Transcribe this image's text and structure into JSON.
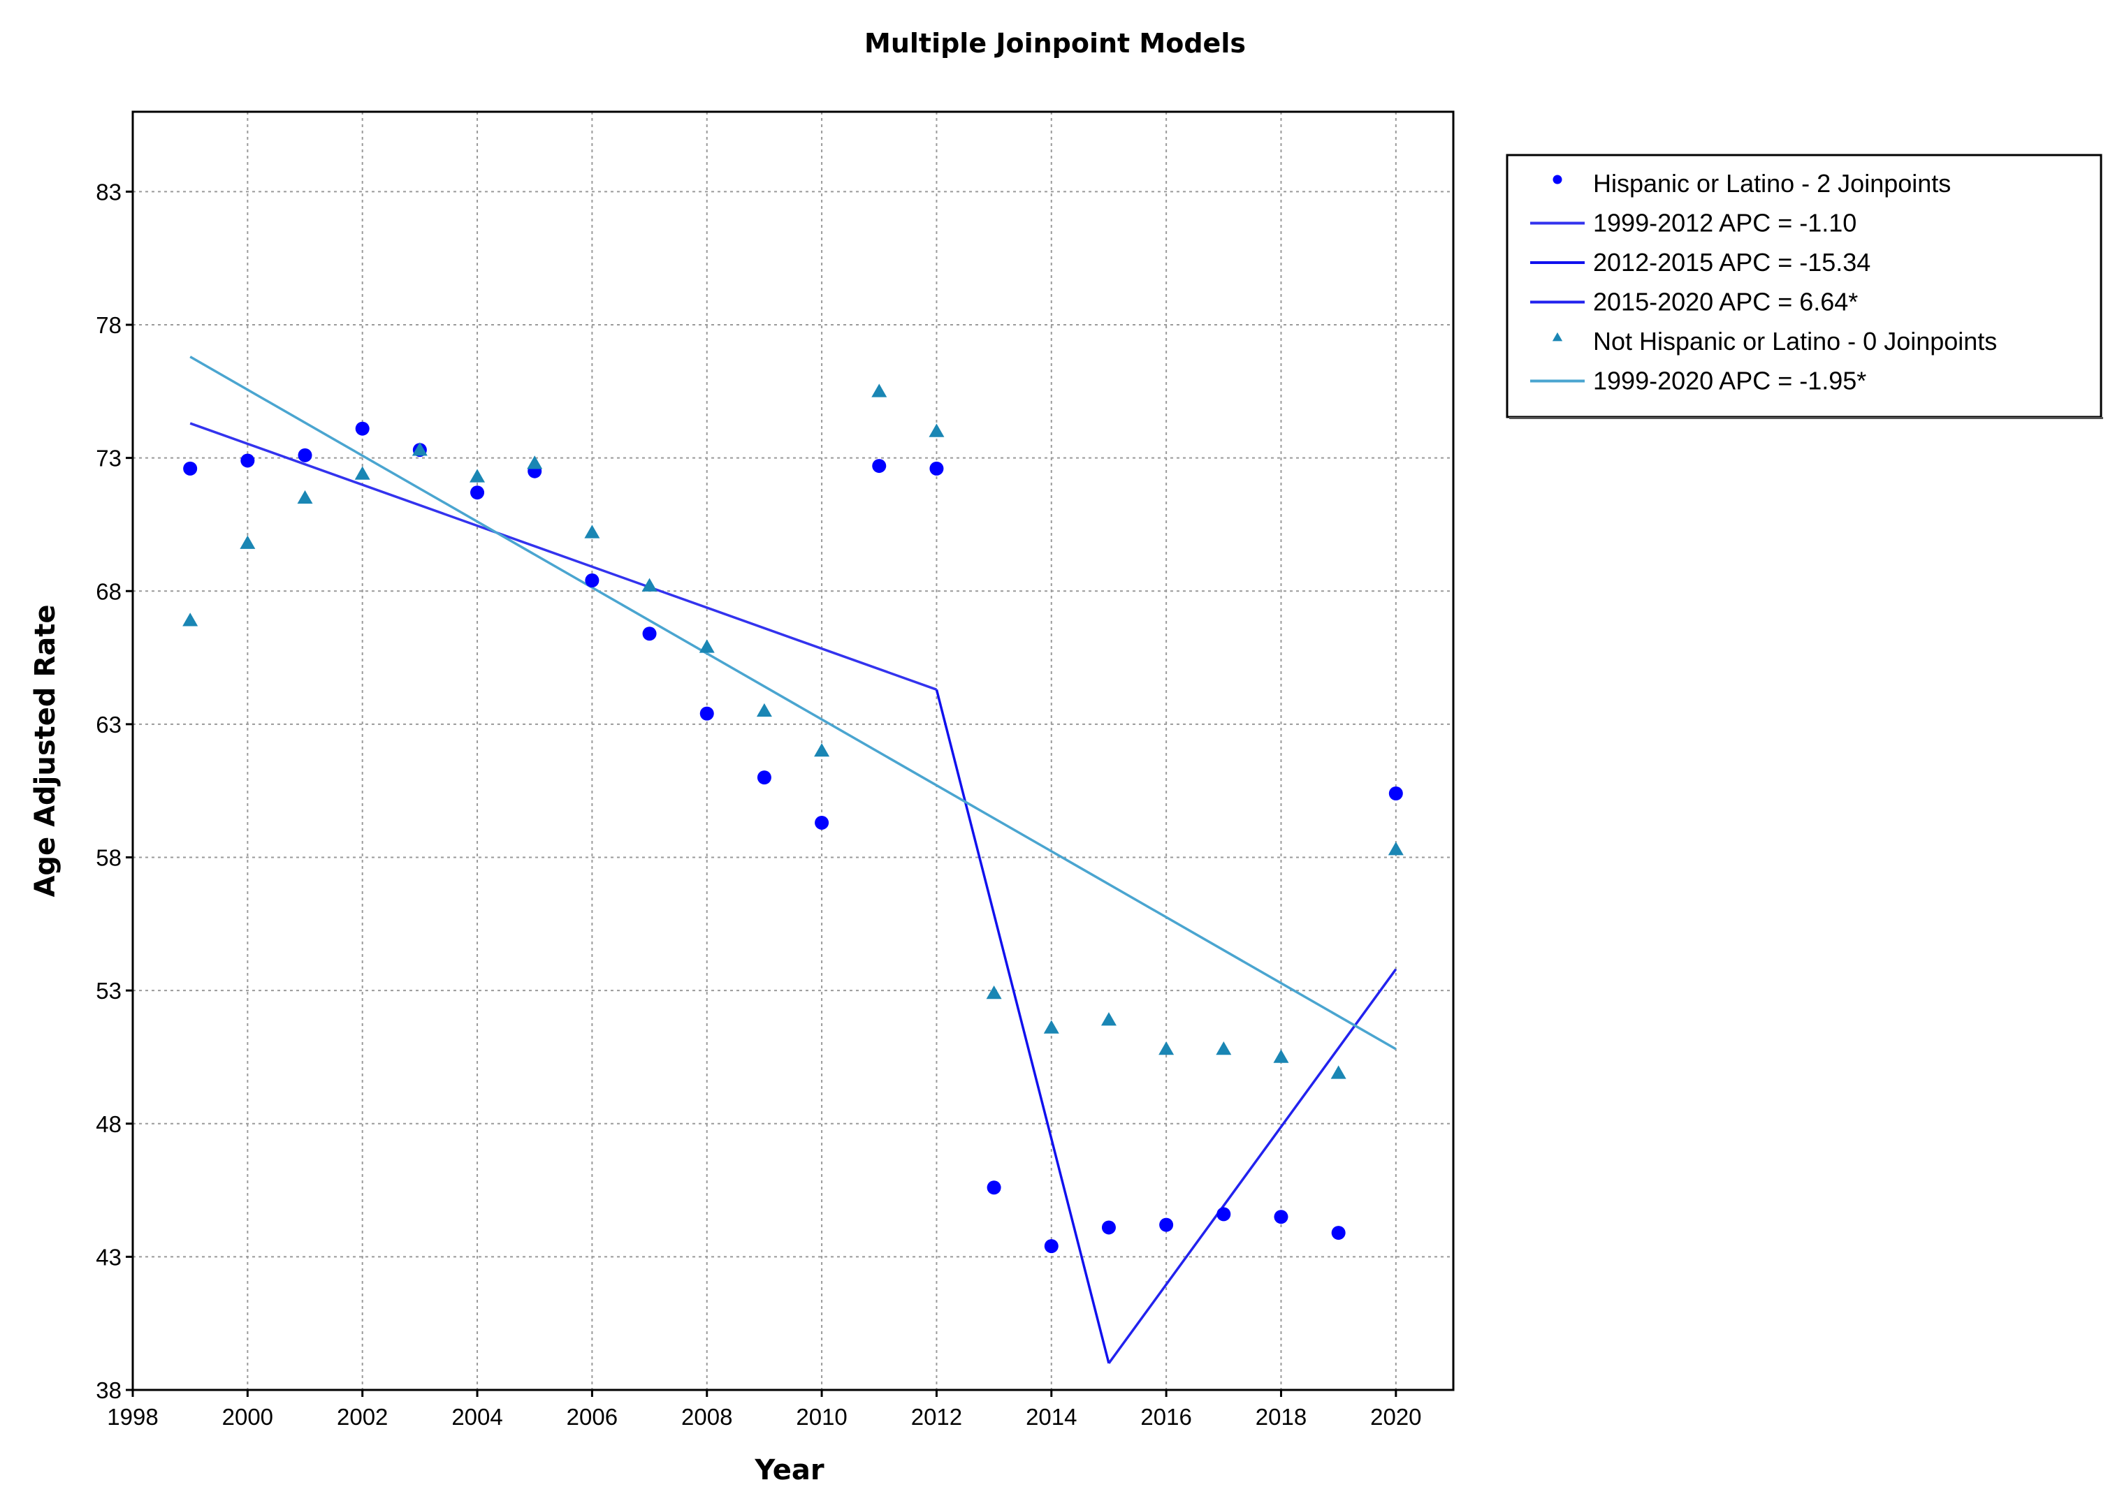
{
  "chart_data": {
    "type": "scatter",
    "title": "Multiple Joinpoint Models",
    "xlabel": "Year",
    "ylabel": "Age Adjusted Rate",
    "xlim": [
      1998,
      2021
    ],
    "ylim": [
      38,
      86
    ],
    "x_ticks": [
      1998,
      2000,
      2002,
      2004,
      2006,
      2008,
      2010,
      2012,
      2014,
      2016,
      2018,
      2020
    ],
    "y_ticks": [
      38,
      43,
      48,
      53,
      58,
      63,
      68,
      73,
      78,
      83
    ],
    "grid": true,
    "legend_position": "right",
    "series": [
      {
        "name": "Hispanic or Latino - 2 Joinpoints",
        "kind": "points",
        "marker": "circle",
        "color": "#0000ff",
        "x": [
          1999,
          2000,
          2001,
          2002,
          2003,
          2004,
          2005,
          2006,
          2007,
          2008,
          2009,
          2010,
          2011,
          2012,
          2013,
          2014,
          2015,
          2016,
          2017,
          2018,
          2019,
          2020
        ],
        "y": [
          72.6,
          72.9,
          73.1,
          74.1,
          73.3,
          71.7,
          72.5,
          68.4,
          66.4,
          63.4,
          61.0,
          59.3,
          72.7,
          72.6,
          45.6,
          43.4,
          44.1,
          44.2,
          44.6,
          44.5,
          43.9,
          60.4
        ]
      },
      {
        "name": "1999-2012 APC  =  -1.10",
        "kind": "line",
        "color": "#3333ee",
        "x": [
          1999,
          2012
        ],
        "y": [
          74.3,
          64.3
        ]
      },
      {
        "name": "2012-2015 APC  = -15.34",
        "kind": "line",
        "color": "#1111ee",
        "x": [
          2012,
          2015
        ],
        "y": [
          64.3,
          39.0
        ]
      },
      {
        "name": "2015-2020 APC  =   6.64*",
        "kind": "line",
        "color": "#2222ee",
        "x": [
          2015,
          2020
        ],
        "y": [
          39.0,
          53.8
        ]
      },
      {
        "name": "Not Hispanic or Latino - 0 Joinpoints",
        "kind": "points",
        "marker": "triangle",
        "color": "#1a86b4",
        "x": [
          1999,
          2000,
          2001,
          2002,
          2003,
          2004,
          2005,
          2006,
          2007,
          2008,
          2009,
          2010,
          2011,
          2012,
          2013,
          2014,
          2015,
          2016,
          2017,
          2018,
          2019,
          2020
        ],
        "y": [
          66.9,
          69.8,
          71.5,
          72.4,
          73.3,
          72.3,
          72.8,
          70.2,
          68.2,
          65.9,
          63.5,
          62.0,
          75.5,
          74.0,
          52.9,
          51.6,
          51.9,
          50.8,
          50.8,
          50.5,
          49.9,
          58.3
        ]
      },
      {
        "name": "1999-2020 APC  = -1.95*",
        "kind": "line",
        "color": "#4aa5d0",
        "x": [
          1999,
          2020
        ],
        "y": [
          76.8,
          50.8
        ]
      }
    ]
  }
}
